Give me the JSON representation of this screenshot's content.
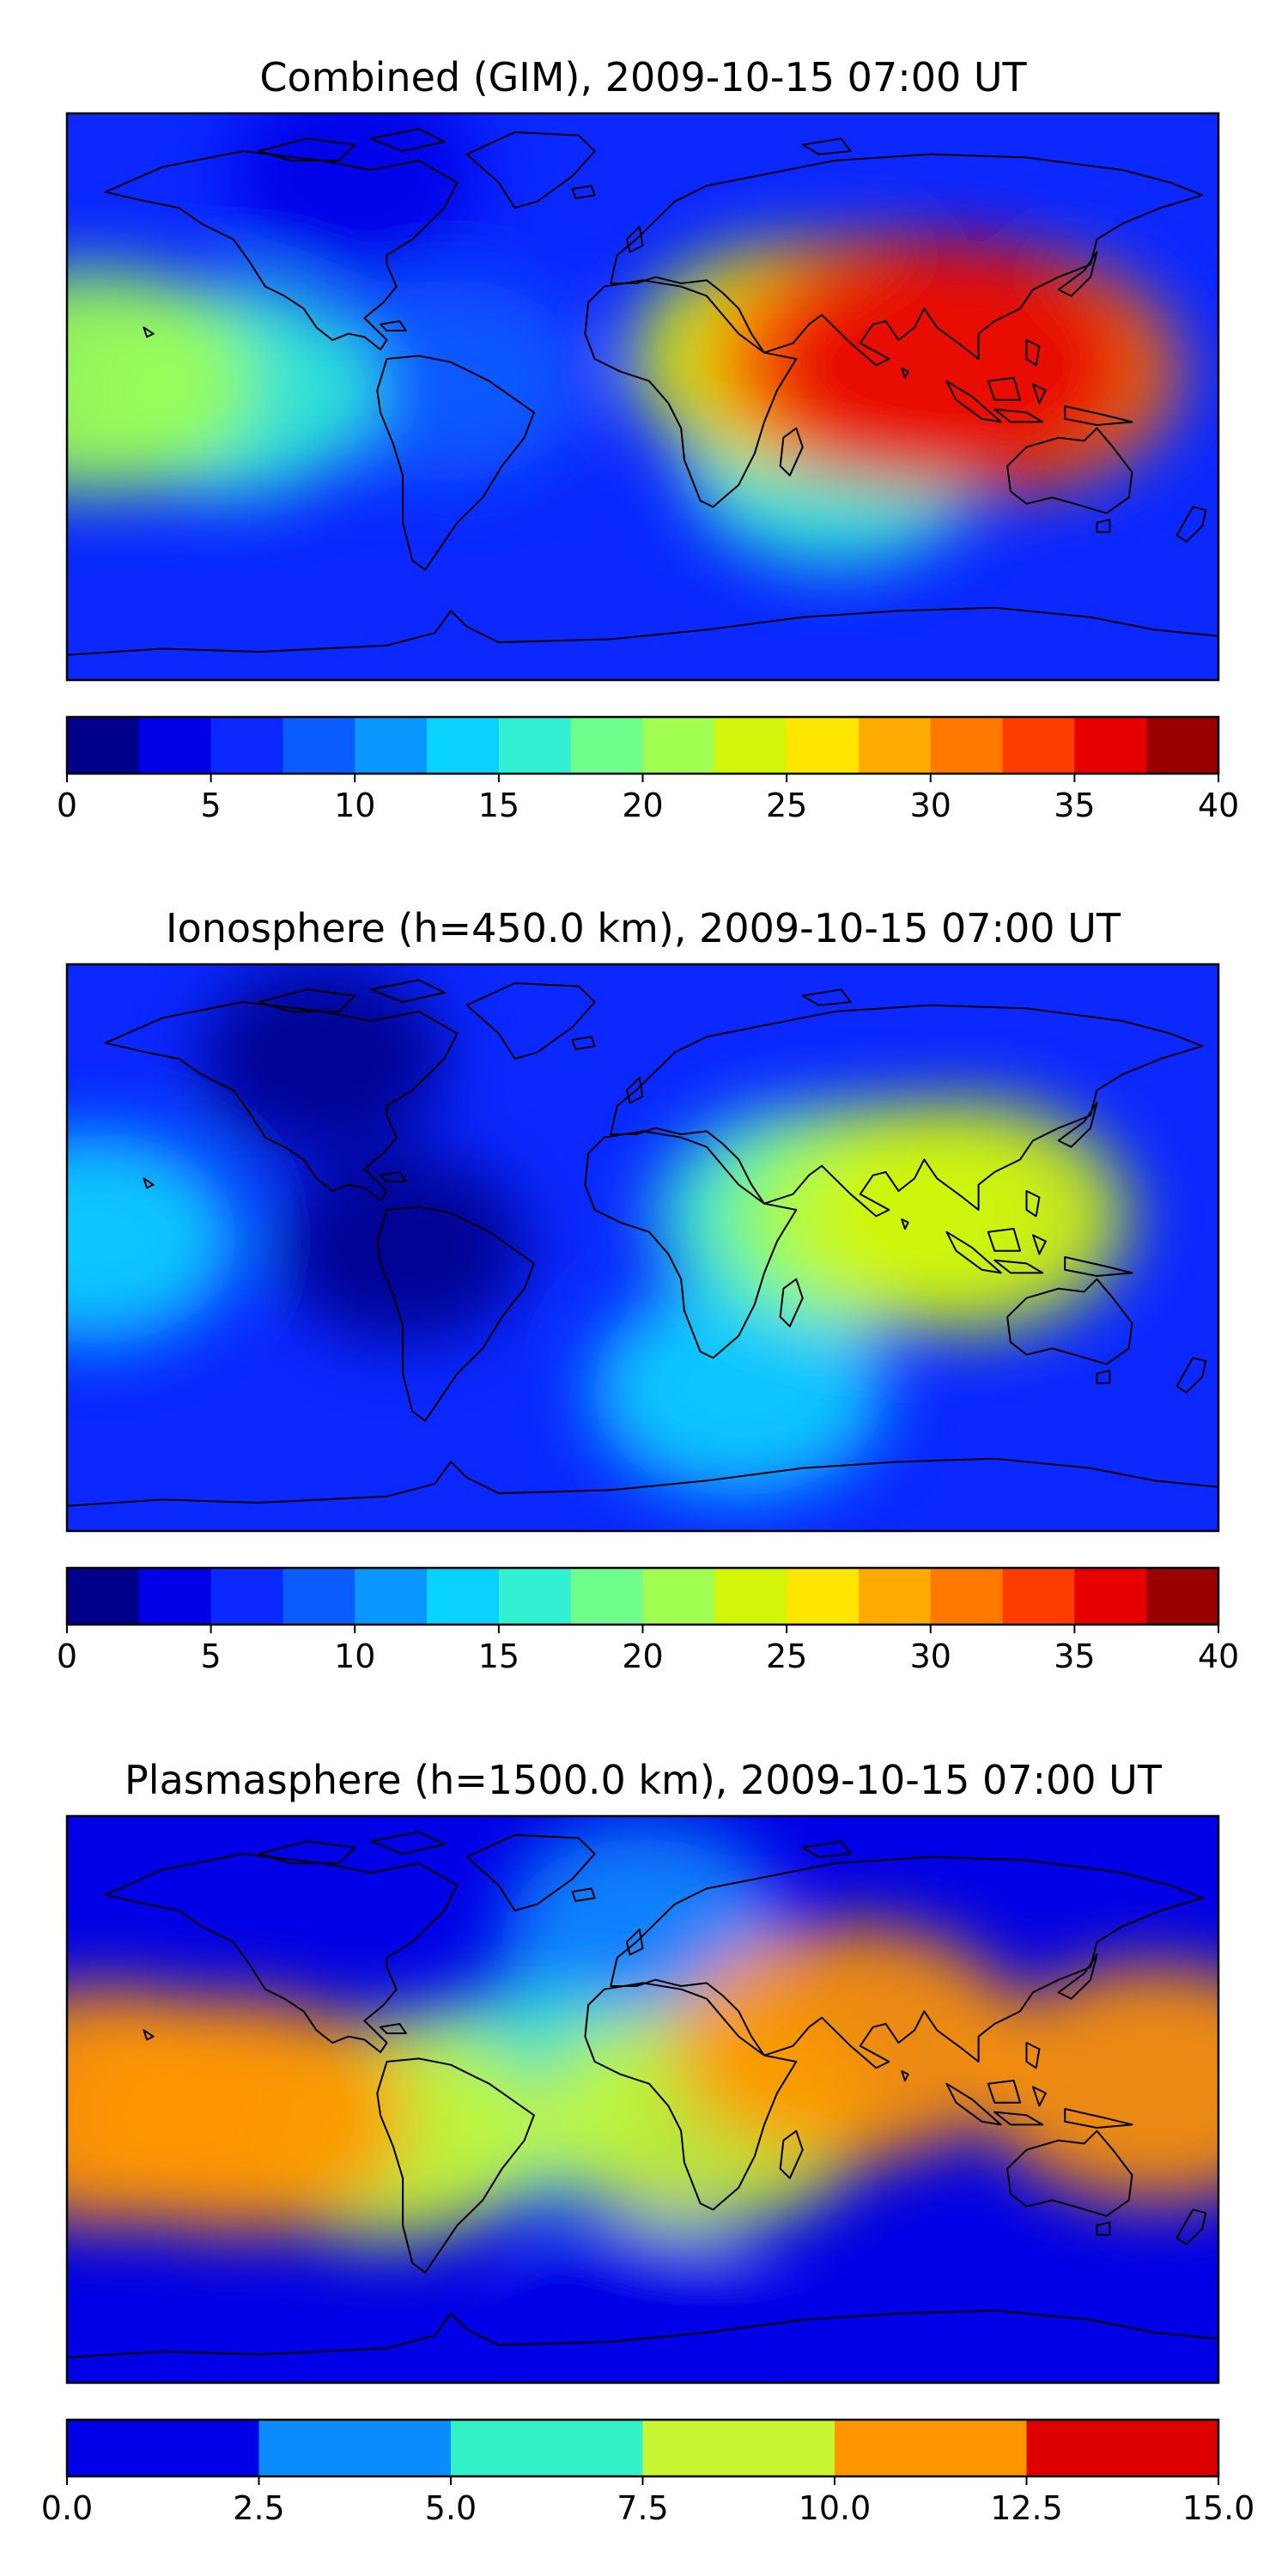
{
  "chart_data": [
    {
      "type": "heatmap",
      "subtype": "filled-contour-map",
      "projection": "plate-carree",
      "title": "Combined (GIM), 2009-10-15 07:00 UT",
      "overlay": "coastlines",
      "levels": [
        0,
        2.5,
        5,
        7.5,
        10,
        12.5,
        15,
        17.5,
        20,
        22.5,
        25,
        27.5,
        30,
        32.5,
        35,
        37.5,
        40
      ],
      "colors": [
        "#00008b",
        "#0000e6",
        "#0a28ff",
        "#0a5cff",
        "#0a96ff",
        "#0ad2ff",
        "#32f0d2",
        "#6eff8c",
        "#a0ff50",
        "#d2f50a",
        "#ffe600",
        "#ffaa00",
        "#ff7800",
        "#ff3c00",
        "#e60000",
        "#9b0000"
      ],
      "colorbar_ticks": [
        "0",
        "5",
        "10",
        "15",
        "20",
        "25",
        "30",
        "35",
        "40"
      ],
      "colorbar_range": [
        0,
        40
      ],
      "max_value_region": "South/Southeast Asia",
      "max_value": 36,
      "features": [
        {
          "lon": 95,
          "lat": 10,
          "value": 36
        },
        {
          "lon": 75,
          "lat": 12,
          "value": 32
        },
        {
          "lon": 112,
          "lat": 8,
          "value": 31
        },
        {
          "lon": 48,
          "lat": 12,
          "value": 24
        },
        {
          "lon": -172,
          "lat": 5,
          "value": 22
        },
        {
          "lon": -130,
          "lat": 2,
          "value": 16
        },
        {
          "lon": 60,
          "lat": -20,
          "value": 15
        },
        {
          "lon": -60,
          "lat": 5,
          "value": 8
        },
        {
          "lon": -90,
          "lat": 70,
          "value": 3
        }
      ]
    },
    {
      "type": "heatmap",
      "subtype": "filled-contour-map",
      "projection": "plate-carree",
      "title": "Ionosphere  (h=450.0 km), 2009-10-15 07:00 UT",
      "overlay": "coastlines",
      "levels": [
        0,
        2.5,
        5,
        7.5,
        10,
        12.5,
        15,
        17.5,
        20,
        22.5,
        25,
        27.5,
        30,
        32.5,
        35,
        37.5,
        40
      ],
      "colors": [
        "#00008b",
        "#0000e6",
        "#0a28ff",
        "#0a5cff",
        "#0a96ff",
        "#0ad2ff",
        "#32f0d2",
        "#6eff8c",
        "#a0ff50",
        "#d2f50a",
        "#ffe600",
        "#ffaa00",
        "#ff7800",
        "#ff3c00",
        "#e60000",
        "#9b0000"
      ],
      "colorbar_ticks": [
        "0",
        "5",
        "10",
        "15",
        "20",
        "25",
        "30",
        "35",
        "40"
      ],
      "colorbar_range": [
        0,
        40
      ],
      "max_value_region": "Southeast Asia",
      "max_value": 24,
      "features": [
        {
          "lon": 100,
          "lat": 10,
          "value": 24
        },
        {
          "lon": 75,
          "lat": 10,
          "value": 21
        },
        {
          "lon": 50,
          "lat": 10,
          "value": 16
        },
        {
          "lon": -172,
          "lat": 3,
          "value": 13
        },
        {
          "lon": 30,
          "lat": -45,
          "value": 14
        },
        {
          "lon": -75,
          "lat": 0,
          "value": 2
        },
        {
          "lon": -100,
          "lat": 60,
          "value": 1.5
        }
      ]
    },
    {
      "type": "heatmap",
      "subtype": "filled-contour-map",
      "projection": "plate-carree",
      "title": "Plasmasphere (h=1500.0 km), 2009-10-15 07:00 UT",
      "overlay": "coastlines",
      "levels": [
        0,
        2.5,
        5,
        7.5,
        10,
        12.5,
        15
      ],
      "colors": [
        "#0000e6",
        "#0a8cff",
        "#32f0c8",
        "#c8f532",
        "#ff9600",
        "#dc0000"
      ],
      "colorbar_ticks": [
        "0.0",
        "2.5",
        "5.0",
        "7.5",
        "10.0",
        "12.5",
        "15.0"
      ],
      "colorbar_range": [
        0,
        15
      ],
      "max_value_region": "Central Pacific / Arabian Sea / West Pacific",
      "max_value": 11,
      "features": [
        {
          "lon": -168,
          "lat": -2,
          "value": 11
        },
        {
          "lon": -127,
          "lat": -5,
          "value": 10.5
        },
        {
          "lon": 65,
          "lat": 18,
          "value": 10.8
        },
        {
          "lon": 160,
          "lat": 5,
          "value": 10.8
        },
        {
          "lon": 20,
          "lat": -5,
          "value": 9
        },
        {
          "lon": -80,
          "lat": -10,
          "value": 8
        },
        {
          "lon": -40,
          "lat": 0,
          "value": 6.5
        },
        {
          "lon": 0,
          "lat": 50,
          "value": 4
        },
        {
          "lon": 0,
          "lat": 70,
          "value": 1.5
        },
        {
          "lon": 0,
          "lat": -70,
          "value": 1.5
        }
      ]
    }
  ]
}
